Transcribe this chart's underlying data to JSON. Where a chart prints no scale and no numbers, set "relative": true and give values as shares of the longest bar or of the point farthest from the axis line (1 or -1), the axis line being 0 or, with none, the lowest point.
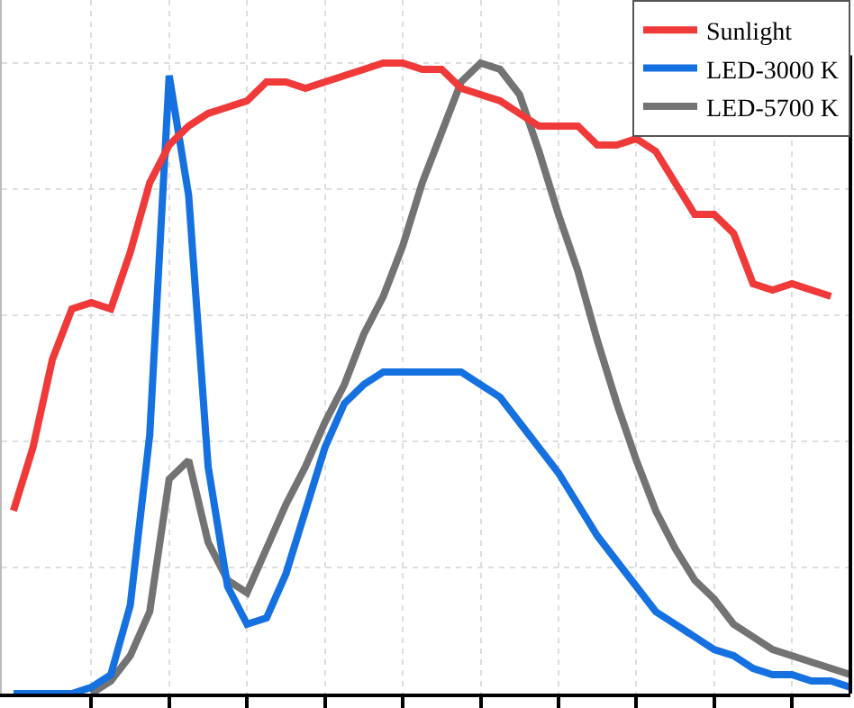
{
  "chart_data": {
    "type": "line",
    "relative": true,
    "grid": true,
    "legend": "top right",
    "marker": "none",
    "line_style": "solid",
    "categories": [
      null,
      null,
      null,
      null,
      null,
      null,
      null,
      null,
      null,
      null,
      null,
      null,
      null,
      null,
      null,
      null,
      null,
      null,
      null,
      null,
      null,
      null,
      null,
      null,
      null,
      null,
      null,
      null,
      null,
      null,
      null,
      null,
      null,
      null,
      null,
      null,
      null,
      null,
      null,
      null,
      null,
      null,
      null,
      null
    ],
    "series": [
      {
        "name": "Sunlight",
        "color": "#f03a3a",
        "values": [
          0.29,
          0.39,
          0.53,
          0.61,
          0.62,
          0.61,
          0.7,
          0.81,
          0.87,
          0.9,
          0.92,
          0.93,
          0.94,
          0.97,
          0.97,
          0.96,
          0.97,
          0.98,
          0.99,
          1.0,
          1.0,
          0.99,
          0.99,
          0.96,
          0.95,
          0.94,
          0.92,
          0.9,
          0.9,
          0.9,
          0.87,
          0.87,
          0.88,
          0.86,
          0.81,
          0.76,
          0.76,
          0.73,
          0.65,
          0.64,
          0.65,
          0.64,
          0.63,
          null
        ]
      },
      {
        "name": "LED-3000 K",
        "color": "#1570e0",
        "values": [
          0,
          0,
          0,
          0,
          0.01,
          0.03,
          0.14,
          0.41,
          0.98,
          0.79,
          0.36,
          0.17,
          0.11,
          0.12,
          0.19,
          0.29,
          0.39,
          0.46,
          0.49,
          0.51,
          0.51,
          0.51,
          0.51,
          0.51,
          0.49,
          0.47,
          0.43,
          0.39,
          0.35,
          0.3,
          0.25,
          0.21,
          0.17,
          0.13,
          0.11,
          0.09,
          0.07,
          0.06,
          0.04,
          0.03,
          0.03,
          0.02,
          0.02,
          0.01
        ]
      },
      {
        "name": "LED-5700 K",
        "color": "#737373",
        "values": [
          null,
          null,
          null,
          null,
          0,
          0.02,
          0.06,
          0.13,
          0.34,
          0.37,
          0.24,
          0.18,
          0.16,
          0.23,
          0.3,
          0.36,
          0.43,
          0.49,
          0.57,
          0.63,
          0.71,
          0.81,
          0.89,
          0.97,
          1.0,
          0.99,
          0.95,
          0.86,
          0.76,
          0.67,
          0.56,
          0.46,
          0.37,
          0.29,
          0.23,
          0.18,
          0.15,
          0.11,
          0.09,
          0.07,
          0.06,
          0.05,
          0.04,
          0.03
        ]
      }
    ]
  }
}
